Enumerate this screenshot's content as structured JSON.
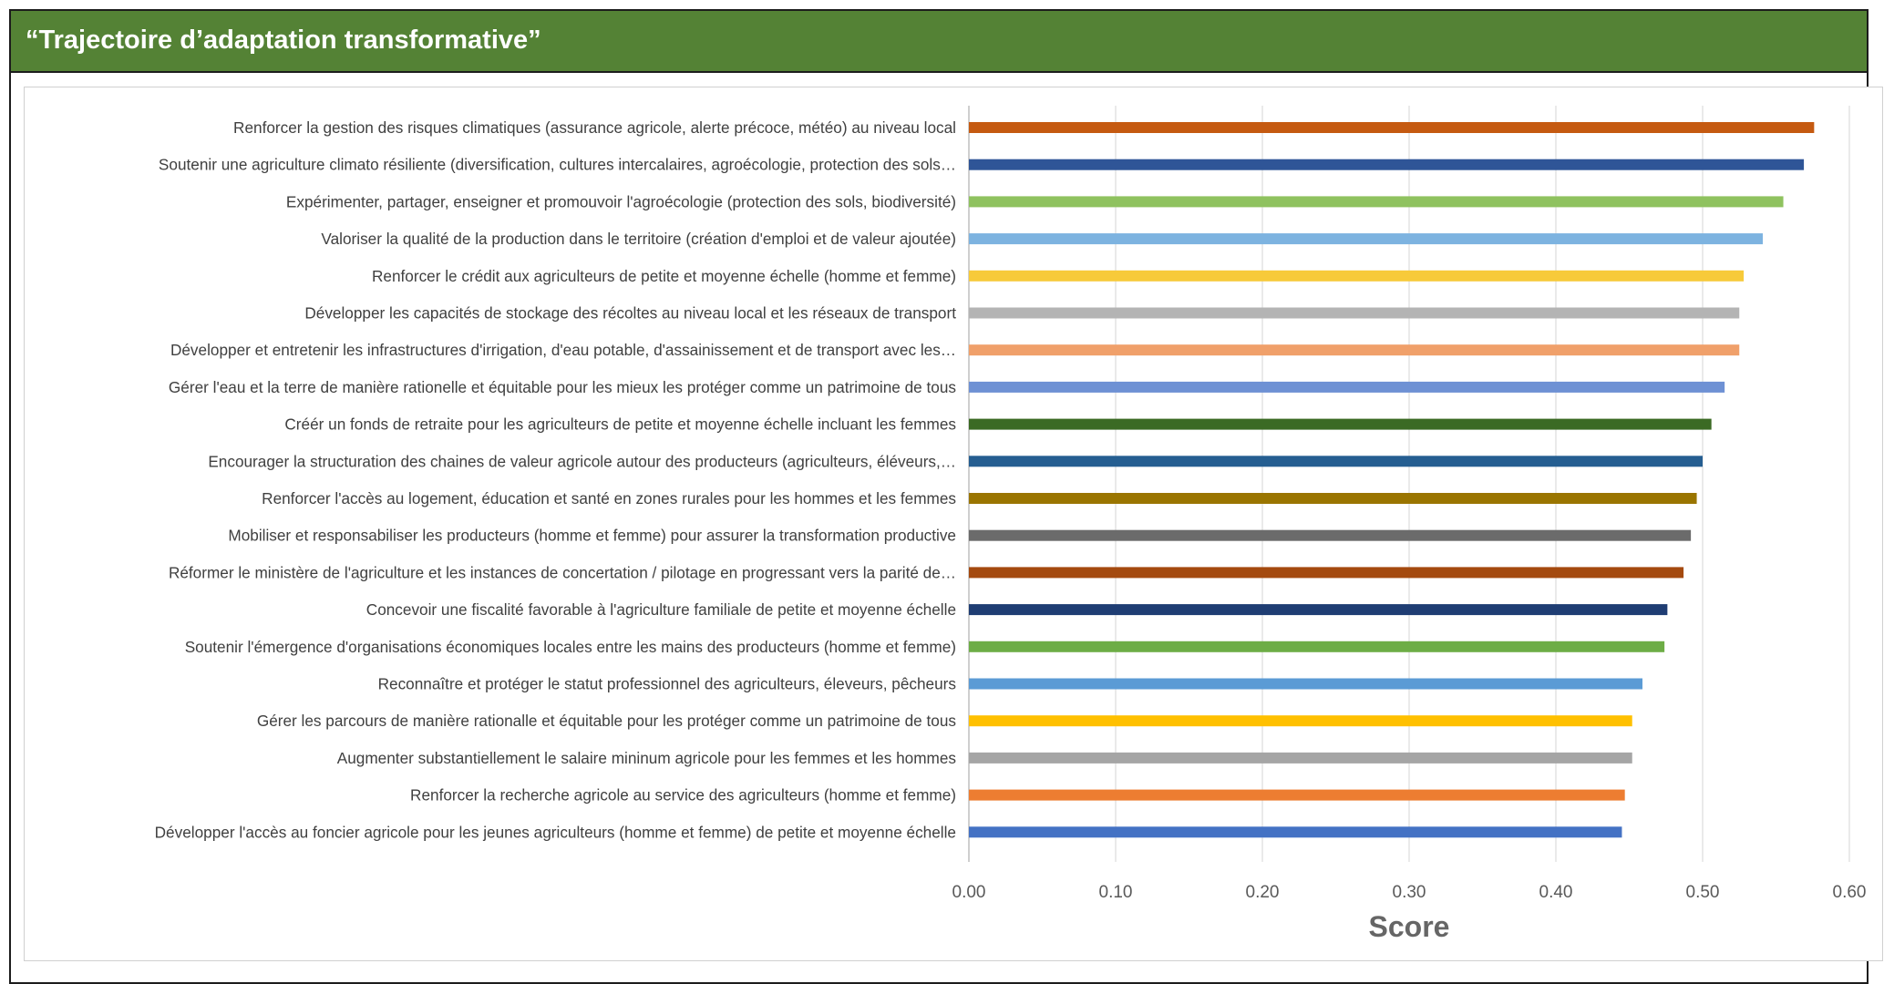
{
  "banner": {
    "title": "“Trajectoire d’adaptation transformative”"
  },
  "chart_data": {
    "type": "bar",
    "orientation": "horizontal",
    "title": "",
    "xlabel": "Score",
    "ylabel": "",
    "xlim": [
      0,
      0.6
    ],
    "x_ticks": [
      "0.00",
      "0.10",
      "0.20",
      "0.30",
      "0.40",
      "0.50",
      "0.60"
    ],
    "grid": true,
    "legend": "none",
    "categories": [
      "Renforcer la gestion des risques climatiques (assurance agricole, alerte précoce, météo) au niveau local",
      "Soutenir une agriculture climato résiliente (diversification, cultures intercalaires, agroécologie, protection des sols…",
      "Expérimenter, partager, enseigner et promouvoir l'agroécologie (protection des sols, biodiversité)",
      "Valoriser la qualité de la production dans le territoire (création d'emploi et de valeur ajoutée)",
      "Renforcer le crédit aux agriculteurs de petite et moyenne échelle (homme et femme)",
      "Développer les capacités de stockage des récoltes au niveau local et les réseaux de transport",
      "Développer et entretenir les infrastructures d'irrigation, d'eau potable, d'assainissement et de transport avec les…",
      "Gérer l'eau et la terre de manière rationelle et équitable pour les mieux les protéger comme un patrimoine de tous",
      "Créér un fonds de retraite pour les agriculteurs de petite et moyenne échelle incluant les femmes",
      "Encourager la structuration des chaines de valeur agricole autour des producteurs (agriculteurs, éléveurs,…",
      "Renforcer l'accès au logement, éducation et santé en zones rurales pour les hommes et les femmes",
      "Mobiliser et responsabiliser les producteurs (homme et femme) pour assurer la transformation productive",
      "Réformer le ministère de l'agriculture et les instances de concertation / pilotage en progressant vers la parité de…",
      "Concevoir une fiscalité favorable à l'agriculture familiale de petite et moyenne échelle",
      "Soutenir l'émergence d'organisations économiques locales entre les mains des producteurs (homme et femme)",
      "Reconnaître et protéger le statut professionnel des agriculteurs, éleveurs, pêcheurs",
      "Gérer les parcours de manière rationalle et équitable pour les protéger comme un patrimoine de tous",
      "Augmenter substantiellement le salaire mininum agricole pour les femmes et les hommes",
      "Renforcer la recherche agricole au service des agriculteurs (homme et femme)",
      "Développer l'accès au foncier agricole pour les jeunes agriculteurs (homme et femme) de petite et moyenne échelle"
    ],
    "values": [
      0.576,
      0.569,
      0.555,
      0.541,
      0.528,
      0.525,
      0.525,
      0.515,
      0.506,
      0.5,
      0.496,
      0.492,
      0.487,
      0.476,
      0.474,
      0.459,
      0.452,
      0.452,
      0.447,
      0.445
    ],
    "colors": [
      "#C55A11",
      "#2F5597",
      "#8FC25F",
      "#7DB3E0",
      "#F7CA3A",
      "#B4B4B4",
      "#F0A06A",
      "#6E91D4",
      "#3B6A24",
      "#255E91",
      "#9A7500",
      "#6B6B6B",
      "#A44A0F",
      "#1F3D73",
      "#6DAD46",
      "#5B9BD5",
      "#FFC000",
      "#A5A5A5",
      "#ED7D31",
      "#4472C4"
    ]
  }
}
